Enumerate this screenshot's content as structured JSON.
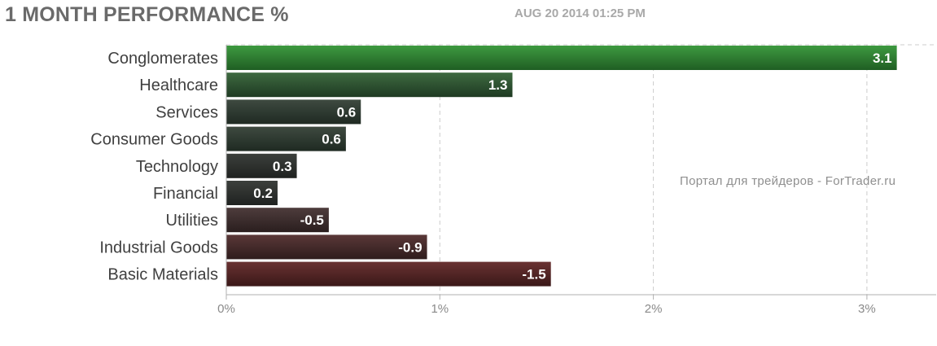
{
  "header": {
    "title": "1 MONTH PERFORMANCE %",
    "timestamp": "AUG 20 2014 01:25 PM"
  },
  "watermark": "Портал для трейдеров - ForTrader.ru",
  "colors": {
    "positive_top": "#2e7d32",
    "positive_bottom": "#1f2a22",
    "negative_top": "#5a2a2a",
    "negative_bottom": "#2a1f1f",
    "grid": "#cccccc",
    "axis": "#b0b0b0"
  },
  "chart_data": {
    "type": "bar",
    "orientation": "horizontal",
    "categories": [
      "Conglomerates",
      "Healthcare",
      "Services",
      "Consumer Goods",
      "Technology",
      "Financial",
      "Utilities",
      "Industrial Goods",
      "Basic Materials"
    ],
    "values": [
      3.1,
      1.3,
      0.6,
      0.6,
      0.3,
      0.2,
      -0.5,
      -0.9,
      -1.5
    ],
    "value_labels": [
      "3.1",
      "1.3",
      "0.6",
      "0.6",
      "0.3",
      "0.2",
      "-0.5",
      "-0.9",
      "-1.5"
    ],
    "bar_magnitudes": [
      3.14,
      1.34,
      0.63,
      0.56,
      0.33,
      0.24,
      0.48,
      0.94,
      1.52
    ],
    "x_ticks": [
      0,
      1,
      2,
      3
    ],
    "x_tick_labels": [
      "0%",
      "1%",
      "2%",
      "3%"
    ],
    "xlim": [
      0,
      3.3
    ],
    "title": "1 MONTH PERFORMANCE %",
    "xlabel": "",
    "ylabel": "",
    "grid": true,
    "legend": "none"
  }
}
